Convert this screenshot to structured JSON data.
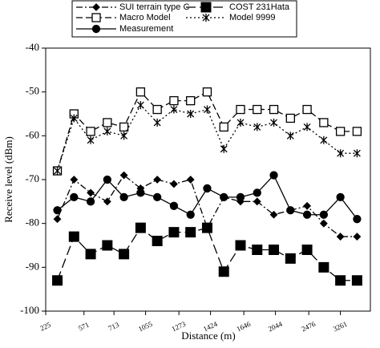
{
  "chart_data": {
    "type": "line",
    "x": [
      1,
      2,
      3,
      4,
      5,
      6,
      7,
      8,
      9,
      10,
      11,
      12,
      13,
      14,
      15,
      16,
      17,
      18,
      19
    ],
    "xlim": [
      0.3,
      19.8
    ],
    "xticks": [
      {
        "value": 0.3,
        "label": "225"
      },
      {
        "value": 2.6,
        "label": "571"
      },
      {
        "value": 4.4,
        "label": "713"
      },
      {
        "value": 6.3,
        "label": "1055"
      },
      {
        "value": 8.3,
        "label": "1273"
      },
      {
        "value": 10.2,
        "label": "1424"
      },
      {
        "value": 12.2,
        "label": "1646"
      },
      {
        "value": 14.1,
        "label": "2044"
      },
      {
        "value": 16.1,
        "label": "2476"
      },
      {
        "value": 18.0,
        "label": "3261"
      }
    ],
    "ylim": [
      -100,
      -40
    ],
    "yticks": [
      -100,
      -90,
      -80,
      -70,
      -60,
      -50,
      -40
    ],
    "x_label": "Distance (m)",
    "y_label": "Receive level (dBm)",
    "series": [
      {
        "name": "SUI terrain type C",
        "color": "#000000",
        "marker": "diamond",
        "linestyle": "dashdot",
        "values": [
          -79,
          -70,
          -73,
          -75,
          -69,
          -72,
          -70,
          -71,
          -70,
          -81,
          -74,
          -75,
          -75,
          -78,
          -77,
          -76,
          -80,
          -83,
          -83
        ]
      },
      {
        "name": "COST 231Hata",
        "color": "#000000",
        "marker": "xsquare",
        "linestyle": "longdash",
        "values": [
          -93,
          -83,
          -87,
          -85,
          -87,
          -81,
          -84,
          -82,
          -82,
          -81,
          -91,
          -85,
          -86,
          -86,
          -88,
          -86,
          -90,
          -93,
          -93
        ]
      },
      {
        "name": "Macro Model",
        "color": "#000000",
        "marker": "square",
        "linestyle": "dashed",
        "values": [
          -68,
          -55,
          -59,
          -57,
          -58,
          -50,
          -54,
          -52,
          -52,
          -50,
          -58,
          -54,
          -54,
          -54,
          -56,
          -54,
          -57,
          -59,
          -59
        ]
      },
      {
        "name": "Model 9999",
        "color": "#000000",
        "marker": "asterisk",
        "linestyle": "dotted",
        "values": [
          -68,
          -56,
          -61,
          -59,
          -60,
          -53,
          -57,
          -54,
          -55,
          -54,
          -63,
          -57,
          -58,
          -57,
          -60,
          -58,
          -61,
          -64,
          -64
        ]
      },
      {
        "name": "Measurement",
        "color": "#000000",
        "marker": "circle",
        "linestyle": "solid",
        "values": [
          -77,
          -74,
          -75,
          -70,
          -74,
          -73,
          -74,
          -76,
          -78,
          -72,
          -74,
          -74,
          -73,
          -69,
          -77,
          -78,
          -78,
          -74,
          -79
        ]
      }
    ]
  }
}
